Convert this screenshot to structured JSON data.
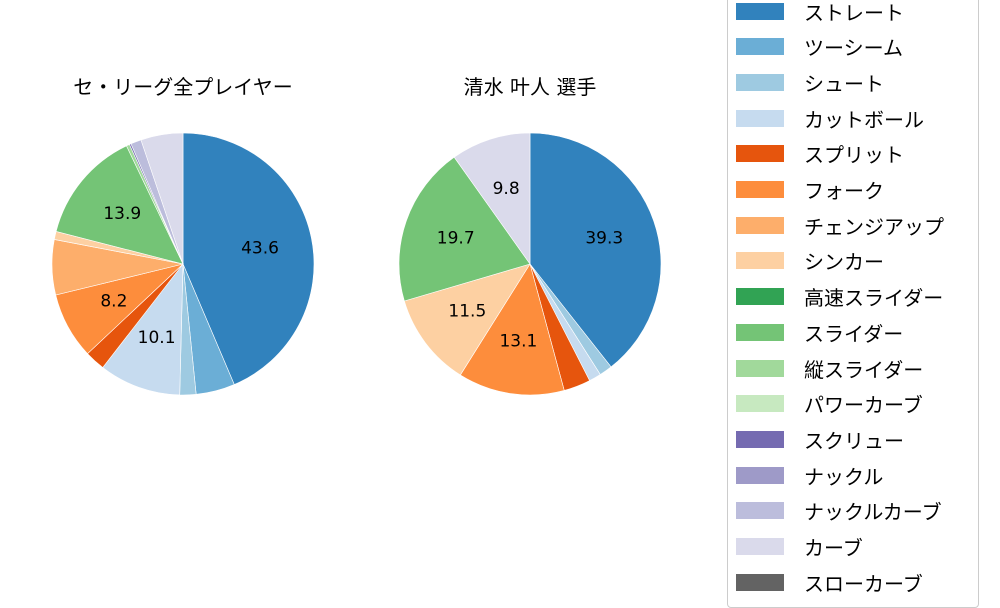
{
  "chart_data": [
    {
      "type": "pie",
      "title": "セ・リーグ全プレイヤー",
      "center": [
        183,
        264
      ],
      "radius": 131,
      "start_angle_deg": 90,
      "direction": "clockwise",
      "categories": [
        "ストレート",
        "ツーシーム",
        "シュート",
        "カットボール",
        "スプリット",
        "フォーク",
        "チェンジアップ",
        "シンカー",
        "高速スライダー",
        "スライダー",
        "縦スライダー",
        "パワーカーブ",
        "スクリュー",
        "ナックル",
        "ナックルカーブ",
        "カーブ",
        "スローカーブ"
      ],
      "values": [
        43.6,
        4.8,
        2.0,
        10.1,
        2.5,
        8.2,
        6.8,
        1.0,
        0.0,
        13.9,
        0.4,
        0.0,
        0.2,
        0.0,
        1.3,
        5.2,
        0.0
      ],
      "data_labels": {
        "ストレート": "43.6",
        "カットボール": "10.1",
        "フォーク": "8.2",
        "スライダー": "13.9"
      }
    },
    {
      "type": "pie",
      "title": "清水 叶人  選手",
      "center": [
        530,
        264
      ],
      "radius": 131,
      "start_angle_deg": 90,
      "direction": "clockwise",
      "categories": [
        "ストレート",
        "ツーシーム",
        "シュート",
        "カットボール",
        "スプリット",
        "フォーク",
        "チェンジアップ",
        "シンカー",
        "高速スライダー",
        "スライダー",
        "縦スライダー",
        "パワーカーブ",
        "スクリュー",
        "ナックル",
        "ナックルカーブ",
        "カーブ",
        "スローカーブ"
      ],
      "values": [
        39.3,
        0.0,
        1.6,
        1.5,
        3.3,
        13.1,
        0.0,
        11.5,
        0.0,
        19.7,
        0.0,
        0.0,
        0.0,
        0.0,
        0.0,
        9.8,
        0.0
      ],
      "data_labels": {
        "ストレート": "39.3",
        "フォーク": "13.1",
        "シンカー": "11.5",
        "スライダー": "19.7",
        "カーブ": "9.8"
      }
    }
  ],
  "legend": {
    "position": "right",
    "items": [
      {
        "label": "ストレート",
        "color": "#3182bd"
      },
      {
        "label": "ツーシーム",
        "color": "#6baed6"
      },
      {
        "label": "シュート",
        "color": "#9ecae1"
      },
      {
        "label": "カットボール",
        "color": "#c6dbef"
      },
      {
        "label": "スプリット",
        "color": "#e6550d"
      },
      {
        "label": "フォーク",
        "color": "#fd8d3c"
      },
      {
        "label": "チェンジアップ",
        "color": "#fdae6b"
      },
      {
        "label": "シンカー",
        "color": "#fdd0a2"
      },
      {
        "label": "高速スライダー",
        "color": "#31a354"
      },
      {
        "label": "スライダー",
        "color": "#74c476"
      },
      {
        "label": "縦スライダー",
        "color": "#a1d99b"
      },
      {
        "label": "パワーカーブ",
        "color": "#c7e9c0"
      },
      {
        "label": "スクリュー",
        "color": "#756bb1"
      },
      {
        "label": "ナックル",
        "color": "#9e9ac8"
      },
      {
        "label": "ナックルカーブ",
        "color": "#bcbddc"
      },
      {
        "label": "カーブ",
        "color": "#dadaeb"
      },
      {
        "label": "スローカーブ",
        "color": "#636363"
      }
    ]
  },
  "titles": {
    "left": "セ・リーグ全プレイヤー",
    "right": "清水 叶人  選手"
  }
}
